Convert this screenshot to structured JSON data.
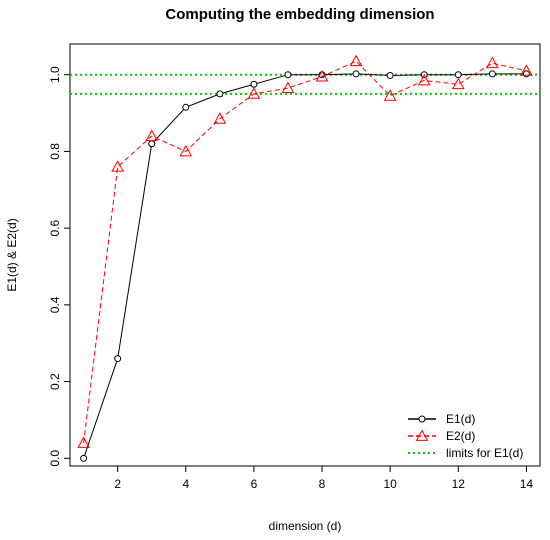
{
  "chart_data": {
    "type": "line",
    "title": "Computing the embedding dimension",
    "xlabel": "dimension (d)",
    "ylabel": "E1(d) & E2(d)",
    "xlim": [
      0.6,
      14.4
    ],
    "ylim": [
      -0.02,
      1.08
    ],
    "x_ticks": [
      2,
      4,
      6,
      8,
      10,
      12,
      14
    ],
    "y_ticks": [
      0.0,
      0.2,
      0.4,
      0.6,
      0.8,
      1.0
    ],
    "x_tick_labels": [
      "2",
      "4",
      "6",
      "8",
      "10",
      "12",
      "14"
    ],
    "y_tick_labels": [
      "0.0",
      "0.2",
      "0.4",
      "0.6",
      "0.8",
      "1.0"
    ],
    "x": [
      1,
      2,
      3,
      4,
      5,
      6,
      7,
      8,
      9,
      10,
      11,
      12,
      13,
      14
    ],
    "series": [
      {
        "name": "E1(d)",
        "color": "#000000",
        "line": "solid",
        "marker": "circle",
        "values": [
          0.0,
          0.26,
          0.82,
          0.915,
          0.95,
          0.975,
          1.0,
          1.0,
          1.002,
          0.998,
          1.0,
          1.0,
          1.002,
          1.002
        ]
      },
      {
        "name": "E2(d)",
        "color": "#ff0000",
        "line": "dashed",
        "marker": "triangle",
        "values": [
          0.04,
          0.76,
          0.84,
          0.8,
          0.885,
          0.95,
          0.965,
          0.995,
          1.035,
          0.945,
          0.985,
          0.975,
          1.03,
          1.01
        ]
      }
    ],
    "reference_lines": [
      {
        "y": 1.0,
        "color": "#00cc00",
        "style": "dotted"
      },
      {
        "y": 0.95,
        "color": "#00cc00",
        "style": "dotted"
      }
    ],
    "legend": {
      "position": "bottom-right",
      "entries": [
        {
          "label": "E1(d)",
          "color": "#000000",
          "line": "solid",
          "marker": "circle"
        },
        {
          "label": "E2(d)",
          "color": "#ff0000",
          "line": "dashed",
          "marker": "triangle"
        },
        {
          "label": "limits for E1(d)",
          "color": "#00cc00",
          "line": "dotted",
          "marker": "none"
        }
      ]
    },
    "grid": false
  }
}
